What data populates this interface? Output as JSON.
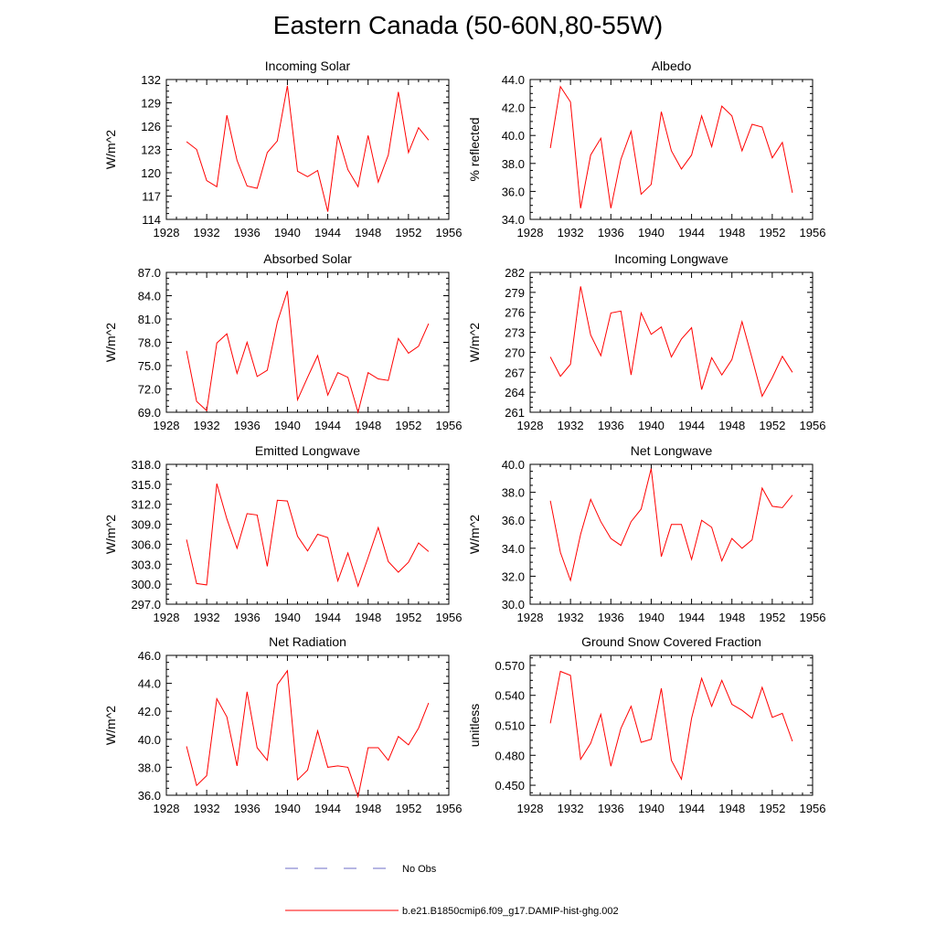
{
  "figure": {
    "title": "Eastern Canada (50-60N,80-55W)"
  },
  "legend": {
    "entries": [
      {
        "label": "No Obs",
        "color": "#6d6dc7",
        "style": "dashed"
      },
      {
        "label": "b.e21.B1850cmip6.f09_g17.DAMIP-hist-ghg.002",
        "color": "#ff0000",
        "style": "solid"
      }
    ]
  },
  "chart_data": [
    {
      "type": "line",
      "title": "Incoming Solar",
      "xlabel": "",
      "ylabel": "W/m^2",
      "xlim": [
        1928,
        1956
      ],
      "ylim": [
        114,
        132
      ],
      "yticks": [
        "114",
        "117",
        "120",
        "123",
        "126",
        "129",
        "132"
      ],
      "xticks": [
        "1928",
        "1932",
        "1936",
        "1940",
        "1944",
        "1948",
        "1952",
        "1956"
      ],
      "series": [
        {
          "color": "#ff0000",
          "x": [
            1930,
            1931,
            1932,
            1933,
            1934,
            1935,
            1936,
            1937,
            1938,
            1939,
            1940,
            1941,
            1942,
            1943,
            1944,
            1945,
            1946,
            1947,
            1948,
            1949,
            1950,
            1951,
            1952,
            1953,
            1954
          ],
          "y": [
            124.0,
            123.0,
            119.0,
            118.2,
            127.4,
            121.6,
            118.3,
            118.0,
            122.6,
            124.1,
            131.2,
            120.2,
            119.5,
            120.3,
            115.0,
            124.8,
            120.4,
            118.2,
            124.8,
            118.8,
            122.3,
            130.4,
            122.6,
            125.8,
            124.2
          ]
        }
      ]
    },
    {
      "type": "line",
      "title": "Albedo",
      "xlabel": "",
      "ylabel": "% reflected",
      "xlim": [
        1928,
        1956
      ],
      "ylim": [
        34,
        44
      ],
      "yticks": [
        "34.0",
        "36.0",
        "38.0",
        "40.0",
        "42.0",
        "44.0"
      ],
      "xticks": [
        "1928",
        "1932",
        "1936",
        "1940",
        "1944",
        "1948",
        "1952",
        "1956"
      ],
      "series": [
        {
          "color": "#ff0000",
          "x": [
            1930,
            1931,
            1932,
            1933,
            1934,
            1935,
            1936,
            1937,
            1938,
            1939,
            1940,
            1941,
            1942,
            1943,
            1944,
            1945,
            1946,
            1947,
            1948,
            1949,
            1950,
            1951,
            1952,
            1953,
            1954
          ],
          "y": [
            39.1,
            43.5,
            42.4,
            34.8,
            38.6,
            39.8,
            34.8,
            38.3,
            40.3,
            35.8,
            36.5,
            41.7,
            38.9,
            37.6,
            38.6,
            41.4,
            39.2,
            42.1,
            41.4,
            38.9,
            40.8,
            40.6,
            38.4,
            39.5,
            35.9
          ]
        }
      ]
    },
    {
      "type": "line",
      "title": "Absorbed Solar",
      "xlabel": "",
      "ylabel": "W/m^2",
      "xlim": [
        1928,
        1956
      ],
      "ylim": [
        69,
        87
      ],
      "yticks": [
        "69.0",
        "72.0",
        "75.0",
        "78.0",
        "81.0",
        "84.0",
        "87.0"
      ],
      "xticks": [
        "1928",
        "1932",
        "1936",
        "1940",
        "1944",
        "1948",
        "1952",
        "1956"
      ],
      "series": [
        {
          "color": "#ff0000",
          "x": [
            1930,
            1931,
            1932,
            1933,
            1934,
            1935,
            1936,
            1937,
            1938,
            1939,
            1940,
            1941,
            1942,
            1943,
            1944,
            1945,
            1946,
            1947,
            1948,
            1949,
            1950,
            1951,
            1952,
            1953,
            1954
          ],
          "y": [
            76.9,
            70.4,
            69.2,
            77.9,
            79.1,
            74.0,
            78.0,
            73.6,
            74.4,
            80.6,
            84.6,
            70.6,
            73.5,
            76.3,
            71.2,
            74.1,
            73.5,
            69.0,
            74.1,
            73.3,
            73.1,
            78.5,
            76.6,
            77.5,
            80.4
          ]
        }
      ]
    },
    {
      "type": "line",
      "title": "Incoming Longwave",
      "xlabel": "",
      "ylabel": "W/m^2",
      "xlim": [
        1928,
        1956
      ],
      "ylim": [
        261,
        282
      ],
      "yticks": [
        "261",
        "264",
        "267",
        "270",
        "273",
        "276",
        "279",
        "282"
      ],
      "xticks": [
        "1928",
        "1932",
        "1936",
        "1940",
        "1944",
        "1948",
        "1952",
        "1956"
      ],
      "series": [
        {
          "color": "#ff0000",
          "x": [
            1930,
            1931,
            1932,
            1933,
            1934,
            1935,
            1936,
            1937,
            1938,
            1939,
            1940,
            1941,
            1942,
            1943,
            1944,
            1945,
            1946,
            1947,
            1948,
            1949,
            1950,
            1951,
            1952,
            1953,
            1954
          ],
          "y": [
            269.3,
            266.4,
            268.2,
            279.9,
            272.6,
            269.5,
            275.9,
            276.2,
            266.6,
            275.9,
            272.7,
            273.8,
            269.3,
            272.0,
            273.7,
            264.4,
            269.2,
            266.6,
            268.9,
            274.6,
            269.1,
            263.4,
            266.2,
            269.4,
            267.0
          ]
        }
      ]
    },
    {
      "type": "line",
      "title": "Emitted Longwave",
      "xlabel": "",
      "ylabel": "W/m^2",
      "xlim": [
        1928,
        1956
      ],
      "ylim": [
        297,
        318
      ],
      "yticks": [
        "297.0",
        "300.0",
        "303.0",
        "306.0",
        "309.0",
        "312.0",
        "315.0",
        "318.0"
      ],
      "xticks": [
        "1928",
        "1932",
        "1936",
        "1940",
        "1944",
        "1948",
        "1952",
        "1956"
      ],
      "series": [
        {
          "color": "#ff0000",
          "x": [
            1930,
            1931,
            1932,
            1933,
            1934,
            1935,
            1936,
            1937,
            1938,
            1939,
            1940,
            1941,
            1942,
            1943,
            1944,
            1945,
            1946,
            1947,
            1948,
            1949,
            1950,
            1951,
            1952,
            1953,
            1954
          ],
          "y": [
            306.7,
            300.1,
            299.9,
            315.1,
            309.8,
            305.4,
            310.6,
            310.4,
            302.7,
            312.6,
            312.5,
            307.2,
            305.0,
            307.5,
            307.0,
            300.5,
            304.7,
            299.7,
            304.0,
            308.5,
            303.4,
            301.8,
            303.3,
            306.2,
            304.9
          ]
        }
      ]
    },
    {
      "type": "line",
      "title": "Net Longwave",
      "xlabel": "",
      "ylabel": "W/m^2",
      "xlim": [
        1928,
        1956
      ],
      "ylim": [
        30,
        40
      ],
      "yticks": [
        "30.0",
        "32.0",
        "34.0",
        "36.0",
        "38.0",
        "40.0"
      ],
      "xticks": [
        "1928",
        "1932",
        "1936",
        "1940",
        "1944",
        "1948",
        "1952",
        "1956"
      ],
      "series": [
        {
          "color": "#ff0000",
          "x": [
            1930,
            1931,
            1932,
            1933,
            1934,
            1935,
            1936,
            1937,
            1938,
            1939,
            1940,
            1941,
            1942,
            1943,
            1944,
            1945,
            1946,
            1947,
            1948,
            1949,
            1950,
            1951,
            1952,
            1953,
            1954
          ],
          "y": [
            37.4,
            33.7,
            31.7,
            35.0,
            37.5,
            35.9,
            34.7,
            34.2,
            35.9,
            36.8,
            39.7,
            33.4,
            35.7,
            35.7,
            33.2,
            36.0,
            35.5,
            33.1,
            34.7,
            34.0,
            34.6,
            38.3,
            37.0,
            36.9,
            37.8
          ]
        }
      ]
    },
    {
      "type": "line",
      "title": "Net Radiation",
      "xlabel": "",
      "ylabel": "W/m^2",
      "xlim": [
        1928,
        1956
      ],
      "ylim": [
        36,
        46
      ],
      "yticks": [
        "36.0",
        "38.0",
        "40.0",
        "42.0",
        "44.0",
        "46.0"
      ],
      "xticks": [
        "1928",
        "1932",
        "1936",
        "1940",
        "1944",
        "1948",
        "1952",
        "1956"
      ],
      "series": [
        {
          "color": "#ff0000",
          "x": [
            1930,
            1931,
            1932,
            1933,
            1934,
            1935,
            1936,
            1937,
            1938,
            1939,
            1940,
            1941,
            1942,
            1943,
            1944,
            1945,
            1946,
            1947,
            1948,
            1949,
            1950,
            1951,
            1952,
            1953,
            1954
          ],
          "y": [
            39.5,
            36.7,
            37.4,
            42.9,
            41.6,
            38.1,
            43.4,
            39.4,
            38.5,
            43.9,
            44.9,
            37.1,
            37.8,
            40.6,
            38.0,
            38.1,
            38.0,
            35.9,
            39.4,
            39.4,
            38.5,
            40.2,
            39.6,
            40.8,
            42.6
          ]
        }
      ]
    },
    {
      "type": "line",
      "title": "Ground Snow Covered Fraction",
      "xlabel": "",
      "ylabel": "unitless",
      "xlim": [
        1928,
        1956
      ],
      "ylim": [
        0.44,
        0.58
      ],
      "yticks": [
        "0.450",
        "0.480",
        "0.510",
        "0.540",
        "0.570"
      ],
      "xticks": [
        "1928",
        "1932",
        "1936",
        "1940",
        "1944",
        "1948",
        "1952",
        "1956"
      ],
      "series": [
        {
          "color": "#ff0000",
          "x": [
            1930,
            1931,
            1932,
            1933,
            1934,
            1935,
            1936,
            1937,
            1938,
            1939,
            1940,
            1941,
            1942,
            1943,
            1944,
            1945,
            1946,
            1947,
            1948,
            1949,
            1950,
            1951,
            1952,
            1953,
            1954
          ],
          "y": [
            0.512,
            0.564,
            0.56,
            0.476,
            0.492,
            0.521,
            0.469,
            0.507,
            0.529,
            0.493,
            0.496,
            0.547,
            0.475,
            0.456,
            0.517,
            0.557,
            0.529,
            0.555,
            0.531,
            0.525,
            0.517,
            0.548,
            0.518,
            0.522,
            0.494
          ]
        }
      ]
    }
  ]
}
